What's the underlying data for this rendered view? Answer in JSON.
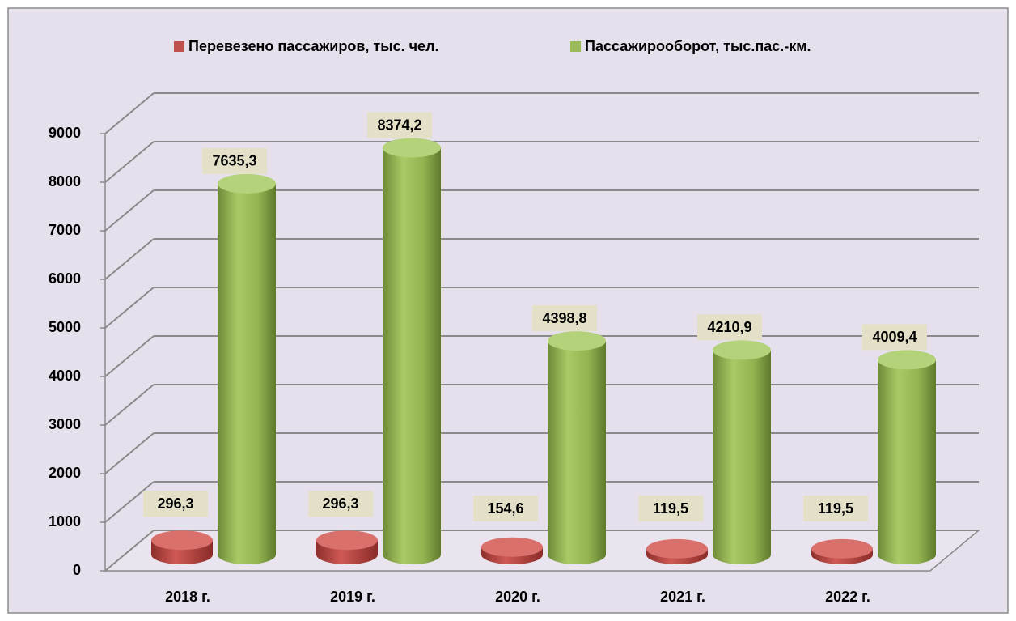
{
  "chart_data": {
    "type": "bar3d",
    "categories": [
      "2018 г.",
      "2019 г.",
      "2020 г.",
      "2021 г.",
      "2022 г."
    ],
    "series": [
      {
        "name": "Перевезено пассажиров, тыс. чел.",
        "color": "#c0504d",
        "values": [
          296.3,
          296.3,
          154.6,
          119.5,
          119.5
        ],
        "value_labels": [
          "296,3",
          "296,3",
          "154,6",
          "119,5",
          "119,5"
        ]
      },
      {
        "name": "Пассажирооборот, тыс.пас.-км.",
        "color": "#9bbb59",
        "values": [
          7635.3,
          8374.2,
          4398.8,
          4210.9,
          4009.4
        ],
        "value_labels": [
          "7635,3",
          "8374,2",
          "4398,8",
          "4210,9",
          "4009,4"
        ]
      }
    ],
    "ylim": [
      0,
      9000
    ],
    "yticks": [
      0,
      1000,
      2000,
      3000,
      4000,
      5000,
      6000,
      7000,
      8000,
      9000
    ],
    "grid": true,
    "legend": "top"
  }
}
